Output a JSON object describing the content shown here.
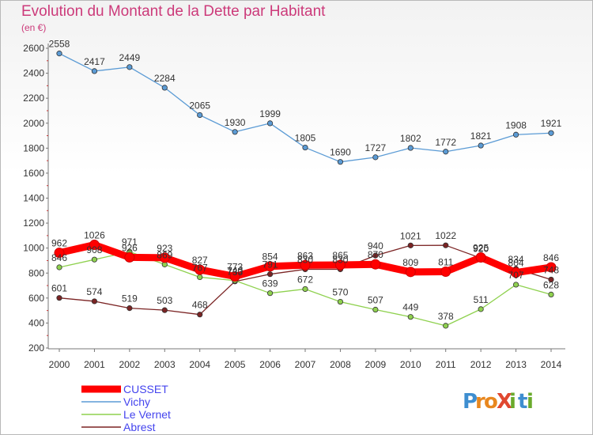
{
  "title": "Evolution du Montant de la Dette par Habitant",
  "unit_label": "(en €)",
  "logo": {
    "text": "ProXiti",
    "letters": [
      "P",
      "r",
      "o",
      "X",
      "i",
      "t",
      "i"
    ],
    "colors": [
      "#3e8ed0",
      "#e8871e",
      "#e8871e",
      "#e04830",
      "#6aaa2c",
      "#3e8ed0",
      "#6aaa2c"
    ]
  },
  "chart_data": {
    "type": "line",
    "title": "Evolution du Montant de la Dette par Habitant",
    "ylabel": "(en €)",
    "xlabel": "",
    "ylim": [
      200,
      2600
    ],
    "yticks": [
      200,
      400,
      600,
      800,
      1000,
      1200,
      1400,
      1600,
      1800,
      2000,
      2200,
      2400,
      2600
    ],
    "x": [
      "2000",
      "2001",
      "2002",
      "2003",
      "2004",
      "2005",
      "2006",
      "2007",
      "2008",
      "2009",
      "2010",
      "2011",
      "2012",
      "2013",
      "2014"
    ],
    "grid": false,
    "legend_position": "bottom-left",
    "series": [
      {
        "name": "CUSSET",
        "color": "#ff0000",
        "values": [
          962,
          1026,
          926,
          923,
          827,
          773,
          854,
          863,
          865,
          870,
          809,
          811,
          925,
          804,
          846
        ],
        "labels_shown": true
      },
      {
        "name": "Vichy",
        "color": "#5b9bd5",
        "values": [
          2558,
          2417,
          2449,
          2284,
          2065,
          1930,
          1999,
          1805,
          1690,
          1727,
          1802,
          1772,
          1821,
          1908,
          1921
        ],
        "labels_shown": true
      },
      {
        "name": "Le Vernet",
        "color": "#8fd14f",
        "values": [
          846,
          908,
          971,
          869,
          767,
          740,
          639,
          672,
          570,
          507,
          449,
          378,
          511,
          707,
          628
        ],
        "labels_shown": true
      },
      {
        "name": "Abrest",
        "color": "#7b2424",
        "values": [
          601,
          574,
          519,
          503,
          468,
          733,
          791,
          830,
          830,
          940,
          1021,
          1022,
          920,
          834,
          748
        ],
        "labels_shown": true
      }
    ]
  }
}
